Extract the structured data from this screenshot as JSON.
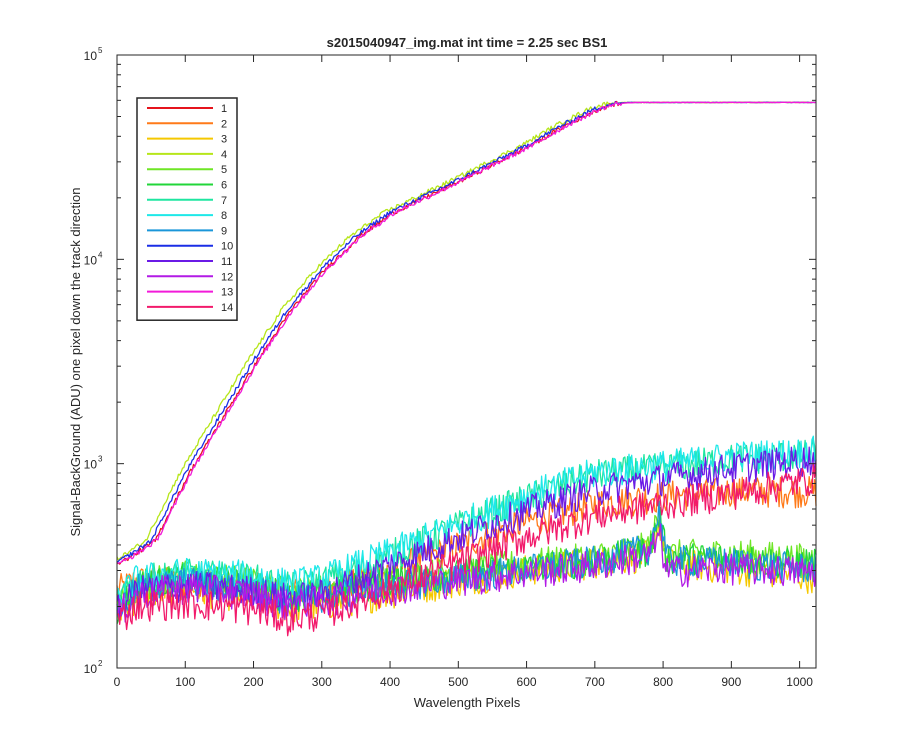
{
  "chart_data": {
    "type": "line",
    "title": "s2015040947_img.mat int time = 2.25 sec   BS1",
    "xlabel": "Wavelength Pixels",
    "ylabel": "Signal-BackGround (ADU) one pixel down the track direction",
    "xlim": [
      0,
      1024
    ],
    "ylim": [
      100,
      100000
    ],
    "yscale": "log",
    "grid": false,
    "legend_position": "top-left",
    "x_ticks": [
      0,
      100,
      200,
      300,
      400,
      500,
      600,
      700,
      800,
      900,
      1000
    ],
    "x_tick_labels": [
      "0",
      "100",
      "200",
      "300",
      "400",
      "500",
      "600",
      "700",
      "800",
      "900",
      "1000"
    ],
    "y_ticks": [
      100,
      1000,
      10000,
      100000
    ],
    "y_tick_labels": [
      {
        "base": "10",
        "exp": "2"
      },
      {
        "base": "10",
        "exp": "3"
      },
      {
        "base": "10",
        "exp": "4"
      },
      {
        "base": "10",
        "exp": "5"
      }
    ],
    "series": [
      {
        "name": "1",
        "color": "#e5141c",
        "group": "high",
        "shift": -6,
        "points": [
          [
            0,
            330
          ],
          [
            20,
            360
          ],
          [
            50,
            420
          ],
          [
            100,
            900
          ],
          [
            150,
            1700
          ],
          [
            200,
            3200
          ],
          [
            250,
            5700
          ],
          [
            300,
            9000
          ],
          [
            350,
            13000
          ],
          [
            400,
            17000
          ],
          [
            500,
            24500
          ],
          [
            600,
            36000
          ],
          [
            650,
            45000
          ],
          [
            700,
            54500
          ],
          [
            725,
            57800
          ],
          [
            750,
            58600
          ],
          [
            1024,
            58600
          ]
        ]
      },
      {
        "name": "2",
        "color": "#ff7a19",
        "group": "low",
        "points": [
          [
            0,
            240
          ],
          [
            30,
            270
          ],
          [
            100,
            260
          ],
          [
            200,
            255
          ],
          [
            250,
            235
          ],
          [
            300,
            240
          ],
          [
            400,
            300
          ],
          [
            500,
            400
          ],
          [
            600,
            520
          ],
          [
            700,
            640
          ],
          [
            800,
            700
          ],
          [
            900,
            735
          ],
          [
            1000,
            740
          ],
          [
            1024,
            735
          ]
        ]
      },
      {
        "name": "3",
        "color": "#f5c800",
        "group": "low",
        "points": [
          [
            0,
            175
          ],
          [
            30,
            230
          ],
          [
            100,
            245
          ],
          [
            200,
            225
          ],
          [
            250,
            200
          ],
          [
            300,
            205
          ],
          [
            400,
            235
          ],
          [
            500,
            270
          ],
          [
            600,
            305
          ],
          [
            700,
            330
          ],
          [
            780,
            360
          ],
          [
            795,
            520
          ],
          [
            805,
            330
          ],
          [
            900,
            310
          ],
          [
            1000,
            285
          ],
          [
            1024,
            280
          ]
        ]
      },
      {
        "name": "4",
        "color": "#b6e61a",
        "group": "high",
        "shift": 8,
        "points": [
          [
            0,
            330
          ],
          [
            20,
            360
          ],
          [
            50,
            420
          ],
          [
            100,
            900
          ],
          [
            150,
            1700
          ],
          [
            200,
            3200
          ],
          [
            250,
            5700
          ],
          [
            300,
            9000
          ],
          [
            350,
            13000
          ],
          [
            400,
            17000
          ],
          [
            500,
            24500
          ],
          [
            600,
            36000
          ],
          [
            650,
            45000
          ],
          [
            700,
            54500
          ],
          [
            725,
            57800
          ],
          [
            750,
            58600
          ],
          [
            1024,
            58600
          ]
        ]
      },
      {
        "name": "5",
        "color": "#6ee625",
        "group": "low",
        "points": [
          [
            0,
            200
          ],
          [
            30,
            260
          ],
          [
            100,
            285
          ],
          [
            200,
            265
          ],
          [
            250,
            235
          ],
          [
            300,
            245
          ],
          [
            400,
            275
          ],
          [
            500,
            300
          ],
          [
            600,
            325
          ],
          [
            700,
            350
          ],
          [
            780,
            395
          ],
          [
            795,
            570
          ],
          [
            805,
            360
          ],
          [
            900,
            365
          ],
          [
            1000,
            345
          ],
          [
            1024,
            345
          ]
        ]
      },
      {
        "name": "6",
        "color": "#21d639",
        "group": "low",
        "points": [
          [
            0,
            195
          ],
          [
            30,
            255
          ],
          [
            100,
            275
          ],
          [
            200,
            255
          ],
          [
            250,
            225
          ],
          [
            300,
            235
          ],
          [
            400,
            265
          ],
          [
            500,
            290
          ],
          [
            600,
            310
          ],
          [
            700,
            340
          ],
          [
            780,
            380
          ],
          [
            795,
            560
          ],
          [
            805,
            350
          ],
          [
            900,
            345
          ],
          [
            1000,
            325
          ],
          [
            1024,
            325
          ]
        ]
      },
      {
        "name": "7",
        "color": "#1ee6a0",
        "group": "low",
        "points": [
          [
            0,
            210
          ],
          [
            30,
            270
          ],
          [
            100,
            290
          ],
          [
            200,
            275
          ],
          [
            250,
            250
          ],
          [
            300,
            265
          ],
          [
            400,
            360
          ],
          [
            500,
            500
          ],
          [
            600,
            680
          ],
          [
            700,
            890
          ],
          [
            800,
            960
          ],
          [
            900,
            1060
          ],
          [
            1000,
            1110
          ],
          [
            1024,
            1120
          ]
        ]
      },
      {
        "name": "8",
        "color": "#1ee8e8",
        "group": "low",
        "points": [
          [
            0,
            215
          ],
          [
            30,
            275
          ],
          [
            100,
            295
          ],
          [
            200,
            285
          ],
          [
            250,
            260
          ],
          [
            300,
            275
          ],
          [
            400,
            370
          ],
          [
            500,
            510
          ],
          [
            600,
            700
          ],
          [
            700,
            910
          ],
          [
            800,
            990
          ],
          [
            900,
            1090
          ],
          [
            1000,
            1140
          ],
          [
            1024,
            1160
          ]
        ]
      },
      {
        "name": "9",
        "color": "#1a96d9",
        "group": "low",
        "points": [
          [
            0,
            190
          ],
          [
            30,
            245
          ],
          [
            100,
            265
          ],
          [
            200,
            245
          ],
          [
            250,
            215
          ],
          [
            300,
            225
          ],
          [
            400,
            255
          ],
          [
            500,
            280
          ],
          [
            600,
            305
          ],
          [
            700,
            335
          ],
          [
            780,
            390
          ],
          [
            795,
            600
          ],
          [
            805,
            340
          ],
          [
            900,
            330
          ],
          [
            1000,
            310
          ],
          [
            1024,
            315
          ]
        ]
      },
      {
        "name": "10",
        "color": "#1a2ee6",
        "group": "high",
        "shift": 0,
        "points": [
          [
            0,
            330
          ],
          [
            20,
            360
          ],
          [
            50,
            420
          ],
          [
            100,
            900
          ],
          [
            150,
            1700
          ],
          [
            200,
            3200
          ],
          [
            250,
            5700
          ],
          [
            300,
            9000
          ],
          [
            350,
            13000
          ],
          [
            400,
            17000
          ],
          [
            500,
            24500
          ],
          [
            600,
            36000
          ],
          [
            650,
            45000
          ],
          [
            700,
            54500
          ],
          [
            725,
            57800
          ],
          [
            750,
            58600
          ],
          [
            1024,
            58600
          ]
        ]
      },
      {
        "name": "11",
        "color": "#6a1ae6",
        "group": "low",
        "points": [
          [
            0,
            190
          ],
          [
            30,
            240
          ],
          [
            100,
            255
          ],
          [
            200,
            240
          ],
          [
            250,
            220
          ],
          [
            300,
            230
          ],
          [
            400,
            320
          ],
          [
            500,
            440
          ],
          [
            600,
            590
          ],
          [
            700,
            750
          ],
          [
            800,
            850
          ],
          [
            900,
            960
          ],
          [
            1000,
            1040
          ],
          [
            1024,
            1060
          ]
        ]
      },
      {
        "name": "12",
        "color": "#b21ae6",
        "group": "low",
        "points": [
          [
            0,
            180
          ],
          [
            30,
            230
          ],
          [
            100,
            250
          ],
          [
            200,
            230
          ],
          [
            250,
            205
          ],
          [
            300,
            215
          ],
          [
            400,
            245
          ],
          [
            500,
            270
          ],
          [
            600,
            295
          ],
          [
            700,
            320
          ],
          [
            780,
            360
          ],
          [
            795,
            450
          ],
          [
            805,
            300
          ],
          [
            900,
            310
          ],
          [
            1000,
            300
          ],
          [
            1024,
            300
          ]
        ]
      },
      {
        "name": "13",
        "color": "#f21ad9",
        "group": "high",
        "shift": -8,
        "points": [
          [
            0,
            330
          ],
          [
            20,
            360
          ],
          [
            50,
            420
          ],
          [
            100,
            900
          ],
          [
            150,
            1700
          ],
          [
            200,
            3200
          ],
          [
            250,
            5700
          ],
          [
            300,
            9000
          ],
          [
            350,
            13000
          ],
          [
            400,
            17000
          ],
          [
            500,
            24500
          ],
          [
            600,
            36000
          ],
          [
            650,
            45000
          ],
          [
            700,
            54500
          ],
          [
            725,
            57800
          ],
          [
            750,
            58600
          ],
          [
            1024,
            58600
          ]
        ]
      },
      {
        "name": "14",
        "color": "#f21a6b",
        "group": "low",
        "points": [
          [
            0,
            170
          ],
          [
            30,
            205
          ],
          [
            100,
            210
          ],
          [
            200,
            195
          ],
          [
            250,
            175
          ],
          [
            300,
            185
          ],
          [
            400,
            245
          ],
          [
            500,
            330
          ],
          [
            600,
            440
          ],
          [
            700,
            560
          ],
          [
            800,
            640
          ],
          [
            900,
            720
          ],
          [
            1000,
            820
          ],
          [
            1024,
            860
          ]
        ]
      }
    ]
  }
}
